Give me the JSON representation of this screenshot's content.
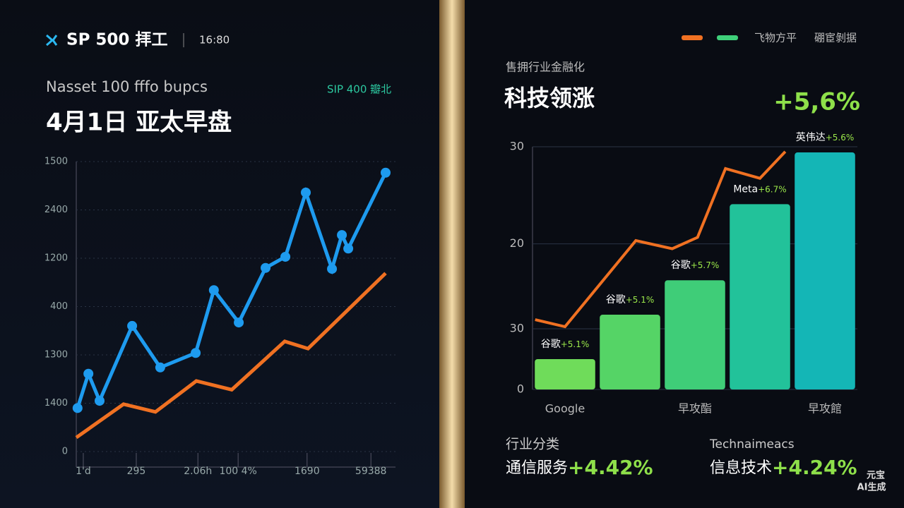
{
  "header": {
    "brand": "SP 500 拝工",
    "time": "16:80",
    "subtitle": "Nasset 100 fffo bupcs",
    "tag": "SIP 400 瓣北",
    "title": "4月1日 亚太早盘",
    "right_kicker": "售拥行业金融化",
    "right_title": "科技领涨",
    "right_headline": "+5,6%"
  },
  "chart_data": [
    {
      "type": "line",
      "xlim": [
        0,
        100
      ],
      "ylim": [
        0,
        600
      ],
      "grid": true,
      "xticks": [
        {
          "value": 2.2,
          "label": "1'd"
        },
        {
          "value": 18.8,
          "label": "295"
        },
        {
          "value": 38.1,
          "label": "2.06h"
        },
        {
          "value": 50.7,
          "label": "100 4%"
        },
        {
          "value": 72.3,
          "label": "1690"
        },
        {
          "value": 92.3,
          "label": "59388"
        }
      ],
      "yticks": [
        {
          "value": 600,
          "label": "1500"
        },
        {
          "value": 500,
          "label": "2400"
        },
        {
          "value": 400,
          "label": "1200"
        },
        {
          "value": 300,
          "label": "400"
        },
        {
          "value": 200,
          "label": "1300"
        },
        {
          "value": 100,
          "label": "1400"
        },
        0
      ],
      "series": [
        {
          "color": "#1e9bef",
          "markers": true,
          "x": [
            0.4,
            3.8,
            7.3,
            17.5,
            26.3,
            37.4,
            43.1,
            50.9,
            59.3,
            65.5,
            71.9,
            80.1,
            83.2,
            85.2,
            96.9
          ],
          "values": [
            90,
            161,
            105,
            260,
            174,
            204,
            334,
            267,
            380,
            403,
            536,
            378,
            448,
            420,
            577
          ]
        },
        {
          "color": "#f07122",
          "markers": false,
          "x": [
            0,
            14.8,
            24.8,
            37.6,
            48.7,
            65.3,
            72.6,
            96.9
          ],
          "values": [
            29,
            98,
            82,
            146,
            128,
            228,
            213,
            369
          ]
        }
      ]
    },
    {
      "type": "bar",
      "xlim": [
        -0.5,
        4.5
      ],
      "ylim": [
        0,
        30
      ],
      "grid": true,
      "legend": "top-right",
      "yticks": [
        0,
        {
          "value": 7.5,
          "label": "30"
        },
        {
          "value": 18,
          "label": "20"
        },
        30
      ],
      "categories": [
        "Google",
        null,
        "早攻酯",
        null,
        "早攻館"
      ],
      "series": [
        {
          "name": "硼宦剝据",
          "type": "bar",
          "color": "#3fd07a",
          "colors": [
            "#6fdc5a",
            "#55d466",
            "#3fcd78",
            "#22c29a",
            "#14b6b6"
          ],
          "values": [
            3.75,
            9.24,
            13.5,
            22.9,
            29.3
          ],
          "notes": [
            {
              "name": "谷歌",
              "change": "+5.1%"
            },
            {
              "name": "谷歌",
              "change": "+5.1%"
            },
            {
              "name": "谷歌",
              "change": "+5.7%"
            },
            {
              "name": "Meta",
              "change": "+6.7%"
            },
            {
              "name": "英伟达",
              "change": "+5.6%"
            }
          ]
        },
        {
          "name": "飞物方平",
          "type": "line",
          "color": "#f07122",
          "x": [
            -0.46,
            0,
            1.09,
            1.65,
            2.04,
            2.47,
            3.0,
            3.39
          ],
          "values": [
            8.63,
            7.76,
            18.4,
            17.4,
            18.8,
            27.3,
            26.1,
            29.4
          ]
        }
      ]
    }
  ],
  "summary": [
    {
      "label": "行业分类",
      "sector": "通信服务",
      "change": "+4.42%"
    },
    {
      "label": "Technaimeacs",
      "sector": "信息技术",
      "change": "+4.24%"
    }
  ],
  "watermark": [
    "元宝",
    "AI生成"
  ]
}
